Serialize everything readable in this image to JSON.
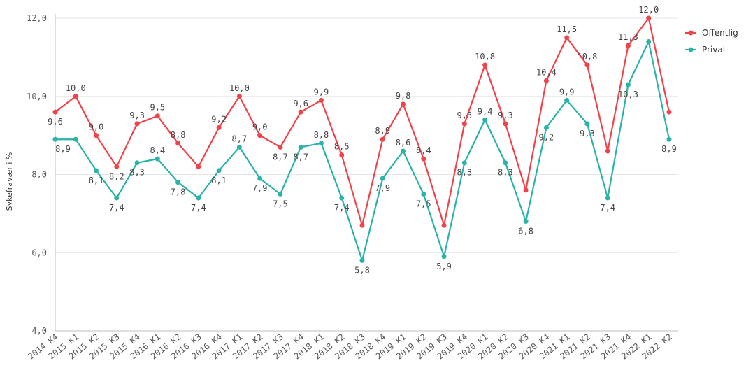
{
  "chart_data": {
    "type": "line",
    "title": "",
    "xlabel": "",
    "ylabel": "Sykefravær i %",
    "ylim": [
      4,
      12
    ],
    "yticks": [
      "4,0",
      "6,0",
      "8,0",
      "10,0",
      "12,0"
    ],
    "grid": true,
    "legend_position": "top-right",
    "categories": [
      "2014 K4",
      "2015 K1",
      "2015 K2",
      "2015 K3",
      "2015 K4",
      "2016 K1",
      "2016 K2",
      "2016 K3",
      "2016 K4",
      "2017 K1",
      "2017 K2",
      "2017 K3",
      "2017 K4",
      "2018 K1",
      "2018 K2",
      "2018 K3",
      "2018 K4",
      "2019 K1",
      "2019 K2",
      "2019 K3",
      "2019 K4",
      "2020 K1",
      "2020 K2",
      "2020 K3",
      "2020 K4",
      "2021 K1",
      "2021 K2",
      "2021 K3",
      "2021 K4",
      "2022 K1",
      "2022 K2"
    ],
    "series": [
      {
        "name": "Offentlig",
        "color": "#f0434a",
        "values": [
          9.6,
          10.0,
          9.0,
          8.2,
          9.3,
          9.5,
          8.8,
          8.2,
          9.2,
          10.0,
          9.0,
          8.7,
          9.6,
          9.9,
          8.5,
          6.7,
          8.9,
          9.8,
          8.4,
          6.7,
          9.3,
          10.8,
          9.3,
          7.6,
          10.4,
          11.5,
          10.8,
          8.6,
          11.3,
          12.0,
          9.6
        ],
        "labels": [
          "9,6",
          "10,0",
          "9,0",
          "8,2",
          "9,3",
          "9,5",
          "8,8",
          "",
          "9,2",
          "10,0",
          "9,0",
          "8,7",
          "9,6",
          "9,9",
          "8,5",
          "",
          "8,9",
          "9,8",
          "8,4",
          "",
          "9,3",
          "10,8",
          "9,3",
          "",
          "10,4",
          "11,5",
          "10,8",
          "",
          "11,3",
          "12,0",
          ""
        ]
      },
      {
        "name": "Privat",
        "color": "#2bb3a8",
        "values": [
          8.9,
          8.9,
          8.1,
          7.4,
          8.3,
          8.4,
          7.8,
          7.4,
          8.1,
          8.7,
          7.9,
          7.5,
          8.7,
          8.8,
          7.4,
          5.8,
          7.9,
          8.6,
          7.5,
          5.9,
          8.3,
          9.4,
          8.3,
          6.8,
          9.2,
          9.9,
          9.3,
          7.4,
          10.3,
          11.4,
          8.9
        ],
        "labels": [
          "8,9",
          "",
          "8,1",
          "7,4",
          "8,3",
          "8,4",
          "7,8",
          "7,4",
          "8,1",
          "8,7",
          "7,9",
          "7,5",
          "8,7",
          "8,8",
          "7,4",
          "5,8",
          "7,9",
          "8,6",
          "7,5",
          "5,9",
          "8,3",
          "9,4",
          "8,3",
          "6,8",
          "9,2",
          "9,9",
          "9,3",
          "7,4",
          "10,3",
          "",
          "8,9"
        ]
      }
    ]
  }
}
